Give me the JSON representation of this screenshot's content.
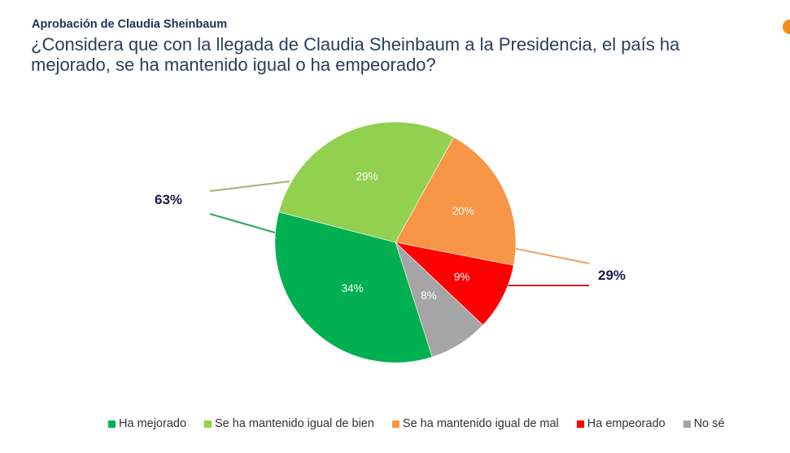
{
  "header": {
    "subtitle": "Aprobación de Claudia Sheinbaum",
    "title": "¿Considera que con la llegada de Claudia Sheinbaum a la Presidencia, el país ha mejorado, se ha mantenido igual o ha empeorado?"
  },
  "chart_data": {
    "type": "pie",
    "title": "¿Considera que con la llegada de Claudia Sheinbaum a la Presidencia, el país ha mejorado, se ha mantenido igual o ha empeorado?",
    "subtitle": "Aprobación de Claudia Sheinbaum",
    "slices": [
      {
        "label": "Se ha mantenido igual de mal",
        "value": 20,
        "display": "20%",
        "color": "#f79646"
      },
      {
        "label": "Ha empeorado",
        "value": 9,
        "display": "9%",
        "color": "#ff0000"
      },
      {
        "label": "No sé",
        "value": 8,
        "display": "8%",
        "color": "#a5a5a5"
      },
      {
        "label": "Ha mejorado",
        "value": 34,
        "display": "34%",
        "color": "#00b050"
      },
      {
        "label": "Se ha mantenido igual de bien",
        "value": 29,
        "display": "29%",
        "color": "#92d050"
      }
    ],
    "groups": [
      {
        "label": "63%",
        "value": 63,
        "members": [
          "Ha mejorado",
          "Se ha mantenido igual de bien"
        ],
        "side": "left"
      },
      {
        "label": "29%",
        "value": 29,
        "members": [
          "Se ha mantenido igual de mal",
          "Ha empeorado"
        ],
        "side": "right"
      }
    ],
    "legend": {
      "placement": "bottom",
      "entries": [
        {
          "label": "Ha mejorado",
          "color": "#00b050"
        },
        {
          "label": "Se ha mantenido igual de bien",
          "color": "#92d050"
        },
        {
          "label": "Se ha mantenido igual de mal",
          "color": "#f79646"
        },
        {
          "label": "Ha empeorado",
          "color": "#ff0000"
        },
        {
          "label": "No sé",
          "color": "#a5a5a5"
        }
      ]
    }
  },
  "colors": {
    "group_label": "#1a1a4e",
    "slice_label": "#ffffff",
    "corner_accent": "#f28c1c"
  }
}
